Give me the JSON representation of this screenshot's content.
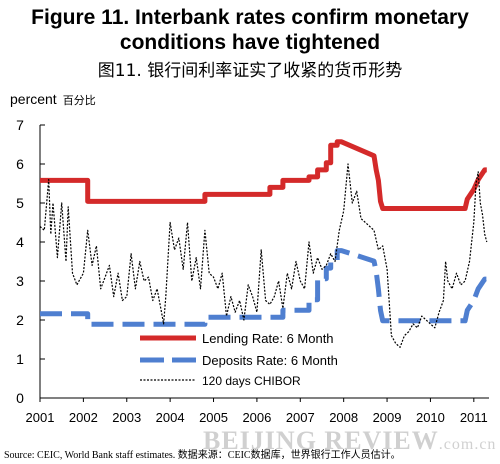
{
  "figure": {
    "title_line1": "Figure 11. Interbank rates confirm monetary",
    "title_line2": "conditions have tightened",
    "title_cn": "图11. 银行间利率证实了收紧的货币形势"
  },
  "source": "Source: CEIC, World Bank staff estimates.    数据来源：CEIC数据库，世界银行工作人员估计。",
  "watermark": {
    "main": "BEIJING REVIEW",
    "domain": ".com.cn"
  },
  "colors": {
    "lending": "#d42a2a",
    "deposits": "#4f7fd0",
    "chibor": "#000000",
    "axis": "#000000"
  },
  "chart_data": {
    "type": "line",
    "ylabel": "percent",
    "ylabel_cn": "百分比",
    "xlim": [
      2001.0,
      2011.35
    ],
    "ylim": [
      0,
      7
    ],
    "x_ticks": [
      2001,
      2002,
      2003,
      2004,
      2005,
      2006,
      2007,
      2008,
      2009,
      2010,
      2011
    ],
    "x_tick_labels": [
      "2001",
      "2002",
      "2003",
      "2004",
      "2005",
      "2006",
      "2007",
      "2008",
      "2009",
      "2010",
      "2011"
    ],
    "y_ticks": [
      0,
      1,
      2,
      3,
      4,
      5,
      6,
      7
    ],
    "y_tick_labels": [
      "0",
      "1",
      "2",
      "3",
      "4",
      "5",
      "6",
      "7"
    ],
    "legend_position": "bottom-center",
    "series": [
      {
        "name": "Lending Rate: 6 Month",
        "style": "solid-thick",
        "color": "#d42a2a",
        "x": [
          2001.0,
          2002.1,
          2002.1,
          2004.8,
          2004.8,
          2006.3,
          2006.3,
          2006.6,
          2006.6,
          2007.2,
          2007.2,
          2007.4,
          2007.4,
          2007.6,
          2007.6,
          2007.7,
          2007.7,
          2007.85,
          2007.85,
          2007.95,
          2007.95,
          2008.7,
          2008.7,
          2008.75,
          2008.8,
          2008.85,
          2008.9,
          2008.95,
          2010.8,
          2010.85,
          2010.85,
          2011.0,
          2011.0,
          2011.1,
          2011.1,
          2011.25,
          2011.3
        ],
        "y": [
          5.58,
          5.58,
          5.04,
          5.04,
          5.22,
          5.22,
          5.4,
          5.4,
          5.58,
          5.58,
          5.67,
          5.67,
          5.85,
          5.85,
          6.03,
          6.03,
          6.48,
          6.48,
          6.57,
          6.57,
          6.57,
          6.21,
          6.21,
          5.85,
          5.58,
          5.04,
          4.86,
          4.86,
          4.86,
          5.1,
          5.1,
          5.35,
          5.35,
          5.6,
          5.6,
          5.85,
          5.85
        ]
      },
      {
        "name": "Deposits Rate: 6 Month",
        "style": "dashed-thick",
        "color": "#4f7fd0",
        "x": [
          2001.0,
          2002.1,
          2002.1,
          2004.8,
          2004.8,
          2006.3,
          2006.3,
          2006.6,
          2006.6,
          2007.2,
          2007.2,
          2007.4,
          2007.4,
          2007.6,
          2007.6,
          2007.7,
          2007.7,
          2007.85,
          2007.85,
          2007.95,
          2007.95,
          2008.7,
          2008.7,
          2008.75,
          2008.8,
          2008.85,
          2008.9,
          2008.95,
          2010.8,
          2010.85,
          2010.85,
          2011.0,
          2011.0,
          2011.1,
          2011.1,
          2011.25,
          2011.3
        ],
        "y": [
          2.16,
          2.16,
          1.89,
          1.89,
          2.07,
          2.07,
          2.07,
          2.07,
          2.25,
          2.25,
          2.52,
          2.52,
          3.06,
          3.06,
          3.33,
          3.33,
          3.51,
          3.51,
          3.78,
          3.78,
          3.78,
          3.51,
          3.51,
          3.24,
          2.79,
          2.25,
          1.98,
          1.98,
          1.98,
          2.25,
          2.25,
          2.5,
          2.5,
          2.8,
          2.8,
          3.05,
          3.05
        ]
      },
      {
        "name": "120 days CHIBOR",
        "style": "dotted",
        "color": "#000000",
        "x": [
          2001.0,
          2001.1,
          2001.2,
          2001.25,
          2001.3,
          2001.4,
          2001.5,
          2001.6,
          2001.65,
          2001.75,
          2001.85,
          2001.9,
          2002.0,
          2002.1,
          2002.2,
          2002.3,
          2002.4,
          2002.5,
          2002.6,
          2002.7,
          2002.8,
          2002.9,
          2003.0,
          2003.1,
          2003.2,
          2003.3,
          2003.4,
          2003.5,
          2003.6,
          2003.7,
          2003.8,
          2003.85,
          2003.9,
          2004.0,
          2004.1,
          2004.2,
          2004.3,
          2004.4,
          2004.5,
          2004.6,
          2004.7,
          2004.8,
          2004.9,
          2005.0,
          2005.1,
          2005.2,
          2005.3,
          2005.4,
          2005.5,
          2005.6,
          2005.7,
          2005.8,
          2005.9,
          2006.0,
          2006.1,
          2006.2,
          2006.3,
          2006.4,
          2006.5,
          2006.6,
          2006.7,
          2006.8,
          2006.9,
          2007.0,
          2007.1,
          2007.2,
          2007.3,
          2007.4,
          2007.5,
          2007.6,
          2007.7,
          2007.8,
          2007.9,
          2008.0,
          2008.1,
          2008.2,
          2008.3,
          2008.4,
          2008.5,
          2008.6,
          2008.7,
          2008.8,
          2008.9,
          2009.0,
          2009.1,
          2009.2,
          2009.3,
          2009.4,
          2009.5,
          2009.6,
          2009.7,
          2009.8,
          2009.9,
          2010.0,
          2010.1,
          2010.2,
          2010.3,
          2010.35,
          2010.4,
          2010.5,
          2010.6,
          2010.7,
          2010.8,
          2010.9,
          2011.0,
          2011.05,
          2011.1,
          2011.15,
          2011.2,
          2011.25,
          2011.3
        ],
        "y": [
          4.4,
          4.3,
          5.6,
          4.2,
          5.0,
          3.6,
          5.0,
          3.5,
          4.9,
          3.2,
          2.9,
          3.0,
          3.2,
          4.3,
          3.4,
          3.9,
          2.8,
          3.1,
          3.4,
          2.6,
          3.2,
          2.5,
          2.6,
          3.7,
          2.8,
          3.5,
          3.0,
          3.1,
          2.5,
          2.8,
          2.2,
          1.9,
          2.6,
          4.5,
          3.8,
          4.1,
          3.3,
          4.5,
          3.0,
          3.6,
          2.8,
          4.3,
          3.2,
          3.1,
          2.8,
          3.2,
          2.1,
          2.6,
          2.2,
          2.5,
          2.0,
          2.9,
          2.6,
          2.2,
          3.8,
          2.5,
          2.4,
          2.6,
          3.0,
          2.3,
          3.2,
          2.8,
          3.5,
          3.0,
          2.8,
          4.0,
          3.2,
          3.6,
          3.3,
          3.4,
          3.7,
          3.5,
          4.3,
          4.8,
          6.0,
          5.0,
          5.3,
          4.6,
          4.5,
          4.4,
          4.3,
          3.8,
          3.9,
          3.3,
          1.6,
          1.4,
          1.3,
          1.6,
          1.7,
          1.9,
          1.8,
          2.1,
          2.0,
          1.9,
          1.8,
          2.2,
          2.5,
          3.5,
          3.0,
          2.8,
          3.2,
          2.9,
          3.0,
          3.5,
          4.5,
          5.5,
          5.8,
          5.0,
          4.7,
          4.2,
          4.0
        ]
      }
    ]
  }
}
